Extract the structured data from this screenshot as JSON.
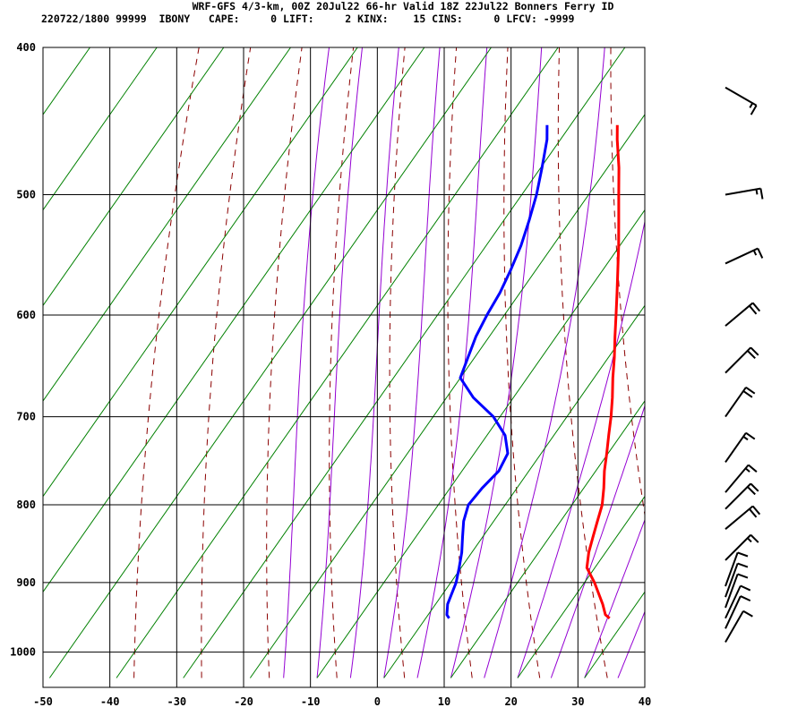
{
  "header": {
    "title": "WRF-GFS 4/3-km, 00Z 20Jul22 66-hr Valid 18Z 22Jul22 Bonners Ferry ID",
    "stats": "220722/1800 99999  IBONY   CAPE:     0 LIFT:     2 KINX:    15 CINS:     0 LFCV: -9999"
  },
  "chart_data": {
    "type": "line",
    "subtype": "skew-t log-p sounding",
    "x_ticks": [
      "-50",
      "-40",
      "-30",
      "-20",
      "-10",
      "0",
      "10",
      "20",
      "30",
      "40"
    ],
    "y_ticks": [
      "400",
      "500",
      "600",
      "700",
      "800",
      "900",
      "1000"
    ],
    "xlim": [
      -50,
      40
    ],
    "ylim_pressure": [
      1040,
      400
    ],
    "grid": true,
    "colors": {
      "temperature": "#ff0000",
      "dewpoint": "#0000ff",
      "isotherm": "#008000",
      "dry_adiabat": "#8b0000",
      "moist_adiabat": "#9400d3",
      "grid": "#000000"
    },
    "series": [
      {
        "key": "temperature",
        "p": [
          950,
          945,
          930,
          900,
          880,
          860,
          840,
          820,
          800,
          780,
          760,
          740,
          720,
          700,
          680,
          660,
          640,
          620,
          600,
          580,
          560,
          540,
          520,
          500,
          480,
          460,
          450
        ],
        "t": [
          27.5,
          26.5,
          25,
          21.5,
          18.8,
          17.5,
          16.5,
          15.5,
          14.5,
          13.0,
          11.3,
          9.8,
          8.2,
          6.6,
          4.8,
          2.8,
          0.9,
          -1.2,
          -3.3,
          -5.5,
          -7.8,
          -10.2,
          -12.8,
          -15.5,
          -18.3,
          -21.5,
          -23.0
        ]
      },
      {
        "key": "dewpoint",
        "p": [
          950,
          945,
          930,
          900,
          880,
          860,
          840,
          820,
          800,
          780,
          760,
          740,
          720,
          700,
          680,
          660,
          640,
          620,
          600,
          580,
          560,
          540,
          520,
          500,
          480,
          460,
          450
        ],
        "t": [
          3.5,
          2.8,
          1.8,
          0.8,
          -0.3,
          -1.5,
          -3.0,
          -4.5,
          -5.5,
          -5.2,
          -4.5,
          -5.0,
          -7.3,
          -11.0,
          -16.0,
          -20.0,
          -21.0,
          -22.0,
          -22.6,
          -23.0,
          -23.8,
          -24.8,
          -26.2,
          -27.8,
          -29.8,
          -32.0,
          -33.5
        ]
      }
    ],
    "isotherms_every": 10,
    "wind_barbs": [
      {
        "p": 425,
        "dir": 300,
        "spd": 15
      },
      {
        "p": 500,
        "dir": 260,
        "spd": 15
      },
      {
        "p": 555,
        "dir": 245,
        "spd": 15
      },
      {
        "p": 610,
        "dir": 230,
        "spd": 20
      },
      {
        "p": 655,
        "dir": 225,
        "spd": 20
      },
      {
        "p": 700,
        "dir": 215,
        "spd": 20
      },
      {
        "p": 750,
        "dir": 215,
        "spd": 15
      },
      {
        "p": 785,
        "dir": 220,
        "spd": 15
      },
      {
        "p": 805,
        "dir": 225,
        "spd": 20
      },
      {
        "p": 830,
        "dir": 230,
        "spd": 20
      },
      {
        "p": 870,
        "dir": 225,
        "spd": 15
      },
      {
        "p": 905,
        "dir": 200,
        "spd": 10
      },
      {
        "p": 920,
        "dir": 200,
        "spd": 10
      },
      {
        "p": 935,
        "dir": 200,
        "spd": 10
      },
      {
        "p": 950,
        "dir": 205,
        "spd": 10
      },
      {
        "p": 965,
        "dir": 205,
        "spd": 10
      },
      {
        "p": 985,
        "dir": 210,
        "spd": 10
      }
    ]
  }
}
